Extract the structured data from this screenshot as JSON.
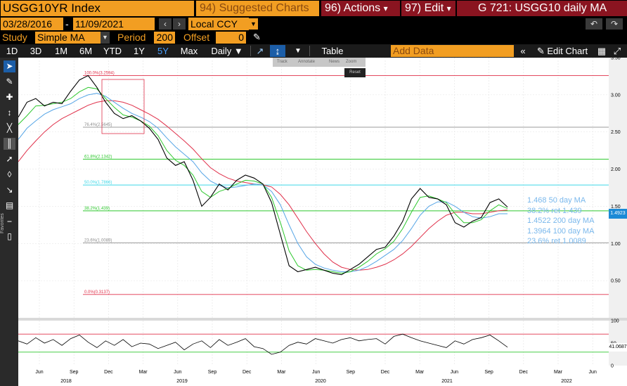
{
  "header": {
    "ticker": "USGG10YR Index",
    "suggested": "94) Suggested Charts",
    "actions": "96) Actions",
    "edit": "97) Edit",
    "title": "G 721: USGG10 daily MA",
    "actions_arrow": "▾",
    "edit_arrow": "▾"
  },
  "dates": {
    "start": "03/28/2016",
    "dash": "-",
    "end": "11/09/2021",
    "currency": "Local CCY"
  },
  "study": {
    "label": "Study",
    "value": "Simple MA",
    "period_label": "Period",
    "period": "200",
    "offset_label": "Offset",
    "offset": "0"
  },
  "periods": [
    "1D",
    "3D",
    "1M",
    "6M",
    "YTD",
    "1Y",
    "5Y",
    "Max"
  ],
  "active_period": "5Y",
  "toolbar": {
    "interval": "Daily ▼",
    "table": "Table",
    "add_data_placeholder": "Add Data",
    "edit_chart": "Edit Chart",
    "undo_icon": "undo-icon",
    "redo_icon": "redo-icon"
  },
  "left_tools": {
    "favorites_label": "Favorites",
    "icons": [
      "cursor-icon",
      "pen-icon",
      "cross-icon",
      "horizontal-line-icon",
      "line-icon",
      "fibonacci-icon",
      "trend-icon",
      "text-icon",
      "arrow-icon",
      "channel-icon",
      "flat-line-icon",
      "eraser-icon"
    ]
  },
  "annotate_bar": {
    "track": "Track",
    "annotate": "Annotate",
    "news": "News",
    "zoom": "Zoom",
    "reset": "Reset"
  },
  "legend": [
    {
      "text": "1.468 50 day MA"
    },
    {
      "text": "38.2% ret 1.439"
    },
    {
      "text": "1.4522 200 day MA"
    },
    {
      "text": "1.3964 100 day MA"
    },
    {
      "text": "23.6% ret 1.0089"
    }
  ],
  "last_price": "1.4923",
  "rsi_last": "41.0687",
  "colors": {
    "price": "#000000",
    "ma50": "#2ec82e",
    "ma100": "#56a5e6",
    "ma200": "#e0304a",
    "accent": "#f29e22",
    "button_red": "#8a1420"
  },
  "chart_data": {
    "type": "line",
    "y_range": [
      0.0,
      3.5
    ],
    "y_ticks": [
      "3.50",
      "3.00",
      "2.50",
      "2.00",
      "1.50",
      "1.00",
      "0.50"
    ],
    "x_month_ticks": [
      "Jun",
      "Sep",
      "Dec",
      "Mar",
      "Jun",
      "Sep",
      "Dec",
      "Mar",
      "Jun",
      "Sep",
      "Dec",
      "Mar",
      "Jun",
      "Sep",
      "Dec",
      "Mar",
      "Jun"
    ],
    "x_year_ticks": [
      "2018",
      "2019",
      "2020",
      "2021",
      "2022"
    ],
    "fib_levels": [
      {
        "label": "100.0%(3.2594)",
        "value": 3.2594,
        "color": "#e0304a"
      },
      {
        "label": "76.4%(2.5645)",
        "value": 2.5645,
        "color": "#8c8c8c"
      },
      {
        "label": "61.8%(2.1342)",
        "value": 2.1342,
        "color": "#2ec82e"
      },
      {
        "label": "50.0%(1.7866)",
        "value": 1.7866,
        "color": "#3ed8e8"
      },
      {
        "label": "38.2%(1.439)",
        "value": 1.439,
        "color": "#2ec82e"
      },
      {
        "label": "23.6%(1.0089)",
        "value": 1.0089,
        "color": "#8c8c8c"
      },
      {
        "label": "0.0%(0.3137)",
        "value": 0.3137,
        "color": "#e0304a"
      }
    ],
    "price": [
      2.7,
      2.9,
      2.95,
      2.85,
      2.9,
      2.88,
      3.05,
      3.2,
      3.26,
      3.1,
      2.9,
      2.75,
      2.68,
      2.72,
      2.65,
      2.55,
      2.4,
      2.15,
      2.05,
      2.1,
      1.85,
      1.5,
      1.62,
      1.8,
      1.72,
      1.85,
      1.92,
      1.88,
      1.8,
      1.55,
      1.12,
      0.7,
      0.62,
      0.65,
      0.68,
      0.64,
      0.6,
      0.58,
      0.65,
      0.72,
      0.82,
      0.92,
      0.95,
      1.1,
      1.3,
      1.6,
      1.74,
      1.62,
      1.6,
      1.52,
      1.28,
      1.22,
      1.3,
      1.35,
      1.55,
      1.6,
      1.49
    ],
    "ma50": [
      2.6,
      2.72,
      2.85,
      2.86,
      2.88,
      2.9,
      2.95,
      3.04,
      3.1,
      3.08,
      2.95,
      2.83,
      2.73,
      2.7,
      2.65,
      2.58,
      2.45,
      2.25,
      2.12,
      2.05,
      1.92,
      1.7,
      1.62,
      1.7,
      1.74,
      1.8,
      1.85,
      1.84,
      1.8,
      1.62,
      1.28,
      0.9,
      0.7,
      0.64,
      0.65,
      0.64,
      0.62,
      0.6,
      0.62,
      0.68,
      0.76,
      0.86,
      0.93,
      1.03,
      1.2,
      1.42,
      1.62,
      1.64,
      1.6,
      1.55,
      1.4,
      1.28,
      1.28,
      1.32,
      1.44,
      1.52,
      1.47
    ],
    "ma100": [
      2.4,
      2.55,
      2.65,
      2.74,
      2.8,
      2.84,
      2.88,
      2.95,
      3.0,
      3.02,
      2.98,
      2.9,
      2.82,
      2.75,
      2.7,
      2.64,
      2.55,
      2.42,
      2.3,
      2.2,
      2.1,
      1.95,
      1.84,
      1.78,
      1.75,
      1.76,
      1.78,
      1.8,
      1.79,
      1.7,
      1.52,
      1.25,
      1.0,
      0.82,
      0.72,
      0.67,
      0.64,
      0.62,
      0.62,
      0.64,
      0.69,
      0.76,
      0.84,
      0.92,
      1.04,
      1.2,
      1.38,
      1.5,
      1.56,
      1.56,
      1.5,
      1.42,
      1.36,
      1.34,
      1.36,
      1.4,
      1.4
    ],
    "ma200": [
      2.1,
      2.25,
      2.38,
      2.5,
      2.6,
      2.68,
      2.74,
      2.8,
      2.86,
      2.9,
      2.92,
      2.92,
      2.9,
      2.86,
      2.8,
      2.74,
      2.67,
      2.58,
      2.48,
      2.38,
      2.27,
      2.14,
      2.02,
      1.94,
      1.88,
      1.84,
      1.82,
      1.8,
      1.79,
      1.76,
      1.66,
      1.52,
      1.34,
      1.16,
      1.0,
      0.86,
      0.75,
      0.68,
      0.65,
      0.64,
      0.65,
      0.68,
      0.72,
      0.78,
      0.86,
      0.96,
      1.08,
      1.2,
      1.3,
      1.38,
      1.42,
      1.42,
      1.4,
      1.4,
      1.42,
      1.44,
      1.45
    ],
    "rsi_y_range": [
      0,
      100
    ],
    "rsi_ticks": [
      "100",
      "50",
      "0"
    ],
    "rsi_bands": [
      70,
      30
    ],
    "rsi": [
      55,
      48,
      62,
      50,
      58,
      45,
      60,
      68,
      52,
      40,
      55,
      45,
      58,
      42,
      50,
      48,
      38,
      45,
      52,
      35,
      48,
      55,
      40,
      58,
      45,
      52,
      60,
      42,
      38,
      25,
      30,
      45,
      52,
      48,
      60,
      55,
      50,
      58,
      62,
      55,
      58,
      60,
      48,
      65,
      70,
      62,
      55,
      50,
      45,
      40,
      55,
      48,
      58,
      62,
      68,
      55,
      41
    ]
  }
}
